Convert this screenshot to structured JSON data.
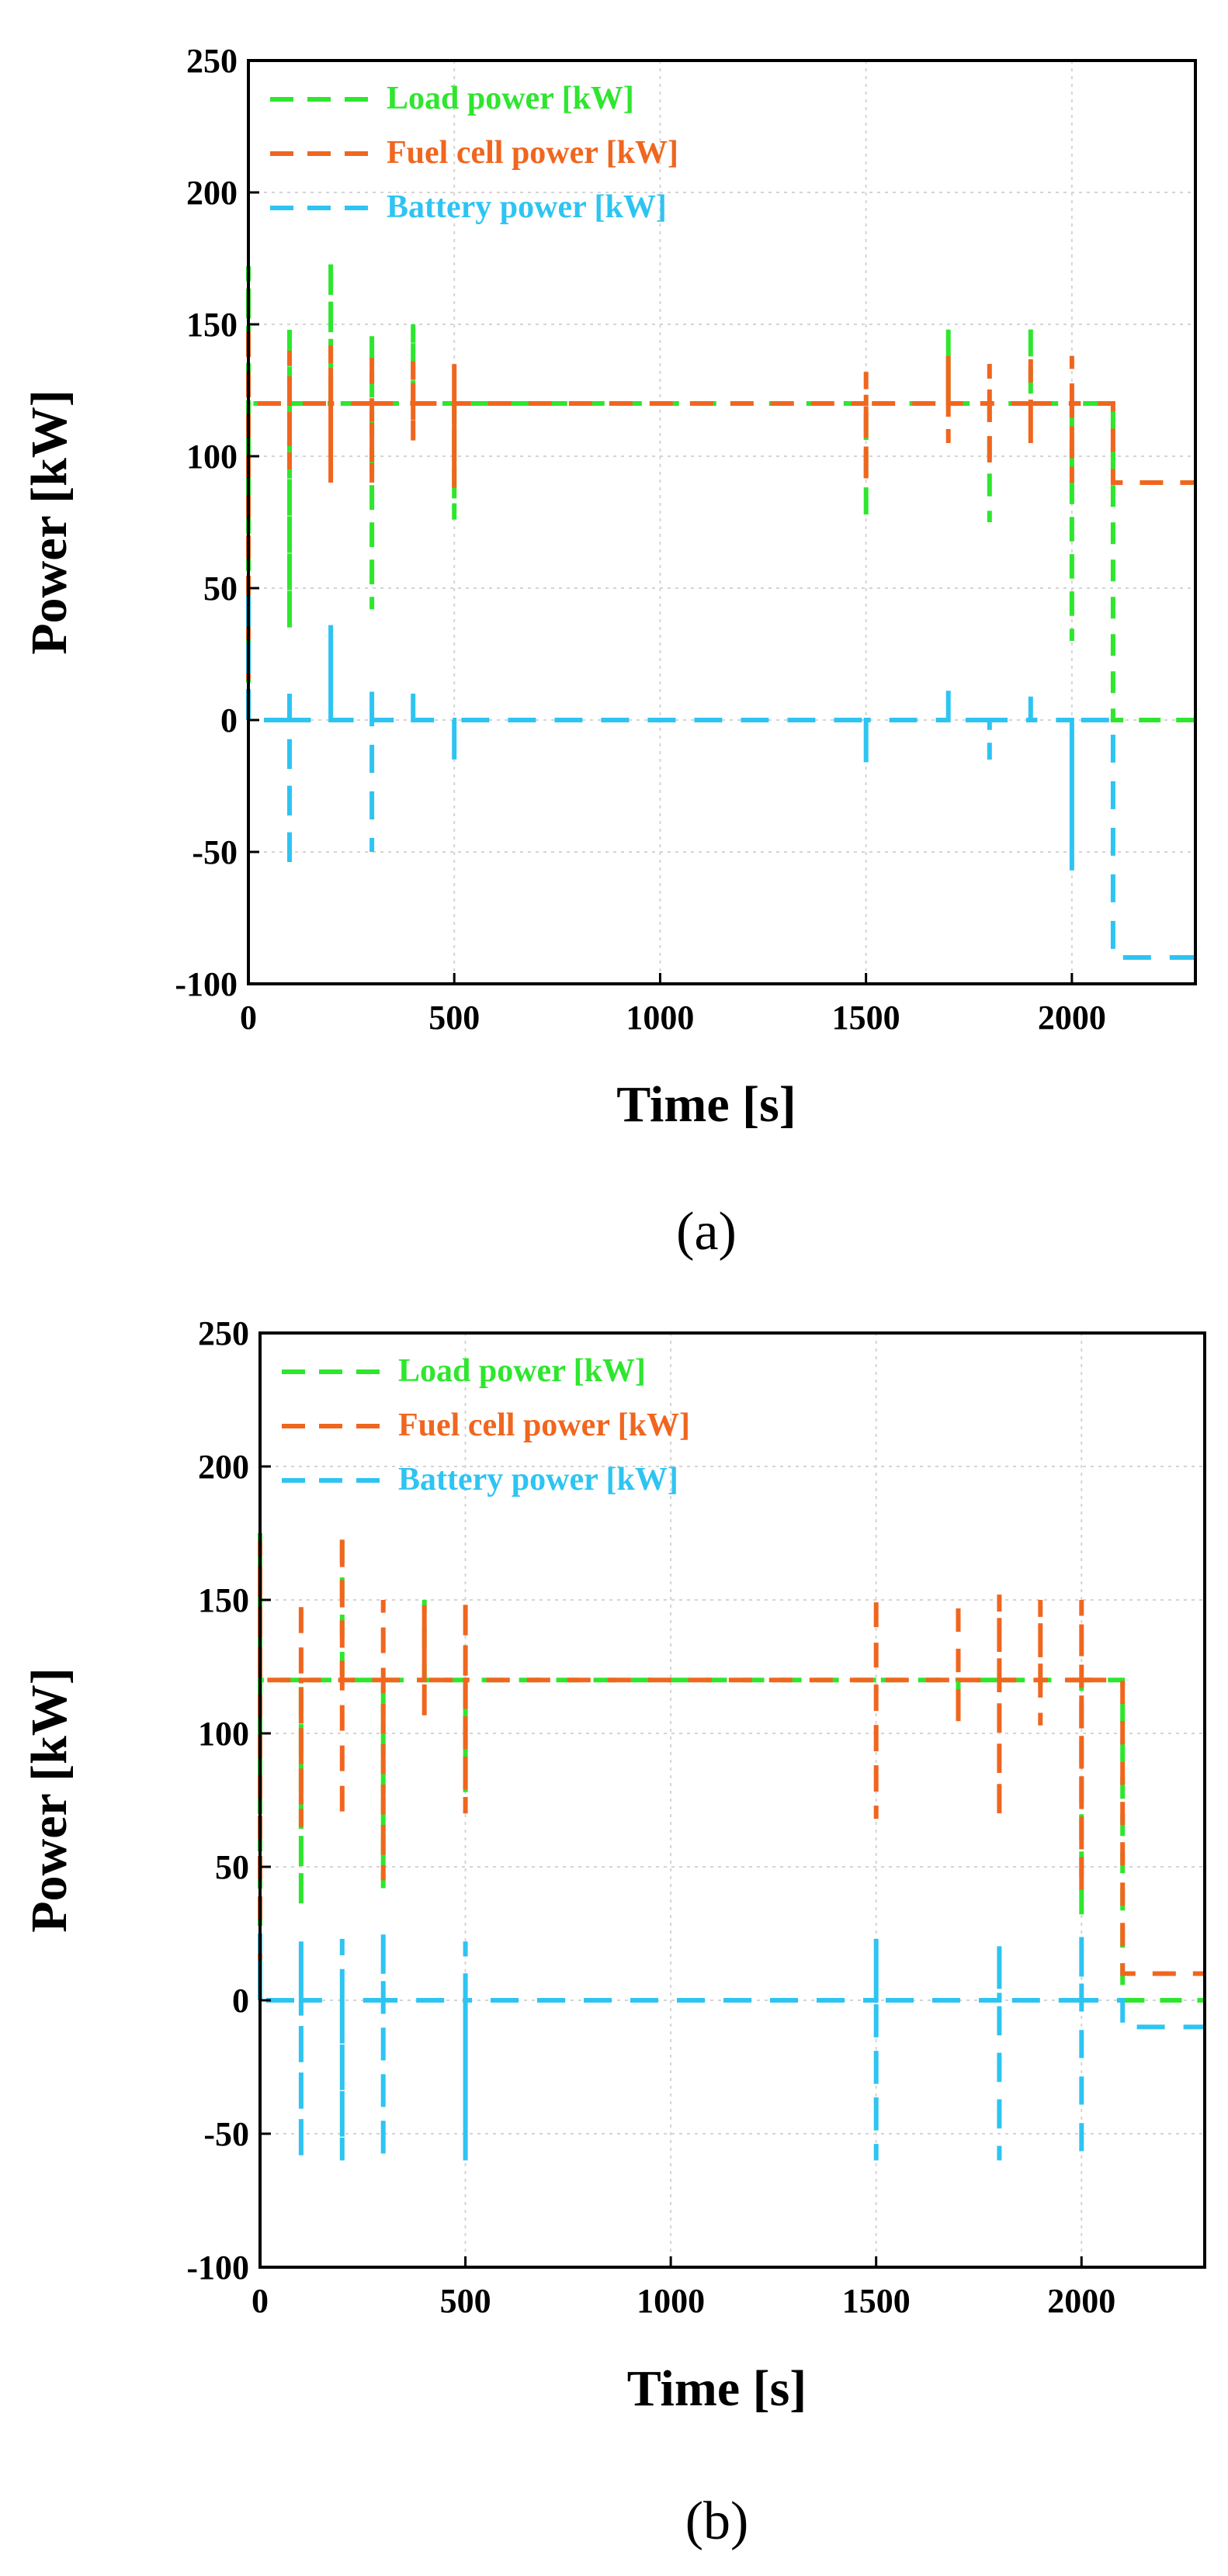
{
  "figure": {
    "colors": {
      "load": "#2ee62e",
      "fuel_cell": "#f0661f",
      "battery": "#2ec4f2",
      "axis": "#000000",
      "grid": "#d4d4d4"
    }
  },
  "chart_data": [
    {
      "type": "line",
      "panel_label": "(a)",
      "xlabel": "Time [s]",
      "ylabel": "Power [kW]",
      "xlim": [
        0,
        2300
      ],
      "ylim": [
        -100,
        250
      ],
      "xticks": [
        0,
        500,
        1000,
        1500,
        2000
      ],
      "yticks": [
        -100,
        -50,
        0,
        50,
        100,
        150,
        200,
        250
      ],
      "grid": true,
      "legend_position": "top-left",
      "series": [
        {
          "name": "Load power [kW]",
          "color": "#2ee62e",
          "x": [
            0,
            0,
            0,
            100,
            100,
            100,
            100,
            200,
            200,
            200,
            300,
            300,
            300,
            300,
            400,
            400,
            400,
            500,
            500,
            500,
            1500,
            1500,
            1500,
            1700,
            1700,
            1700,
            1800,
            1800,
            1800,
            1900,
            1900,
            1900,
            2000,
            2000,
            2000,
            2100,
            2100,
            2300
          ],
          "y": [
            0,
            172,
            120,
            120,
            35,
            148,
            120,
            120,
            174,
            120,
            120,
            148,
            42,
            120,
            120,
            150,
            120,
            120,
            76,
            120,
            120,
            76,
            120,
            120,
            148,
            120,
            120,
            75,
            120,
            120,
            150,
            120,
            120,
            30,
            120,
            120,
            0,
            0
          ]
        },
        {
          "name": "Fuel cell power [kW]",
          "color": "#f0661f",
          "x": [
            0,
            0,
            0,
            100,
            100,
            100,
            100,
            200,
            200,
            200,
            200,
            300,
            300,
            300,
            300,
            400,
            400,
            400,
            400,
            500,
            500,
            500,
            500,
            1500,
            1500,
            1500,
            1500,
            1700,
            1700,
            1700,
            1700,
            1800,
            1800,
            1800,
            1800,
            1900,
            1900,
            1900,
            1900,
            2000,
            2000,
            2000,
            2000,
            2100,
            2100,
            2300
          ],
          "y": [
            0,
            150,
            120,
            120,
            95,
            140,
            120,
            120,
            142,
            90,
            120,
            120,
            140,
            90,
            120,
            120,
            136,
            106,
            120,
            120,
            135,
            88,
            120,
            120,
            132,
            90,
            120,
            120,
            138,
            105,
            120,
            120,
            135,
            95,
            120,
            120,
            140,
            105,
            120,
            120,
            138,
            90,
            120,
            120,
            90,
            90
          ]
        },
        {
          "name": "Battery power [kW]",
          "color": "#2ec4f2",
          "x": [
            0,
            0,
            0,
            100,
            100,
            100,
            100,
            200,
            200,
            200,
            300,
            300,
            300,
            300,
            400,
            400,
            400,
            500,
            500,
            500,
            1500,
            1500,
            1500,
            1700,
            1700,
            1700,
            1800,
            1800,
            1800,
            1900,
            1900,
            1900,
            2000,
            2000,
            2000,
            2100,
            2100,
            2300
          ],
          "y": [
            0,
            50,
            0,
            0,
            -57,
            10,
            0,
            0,
            36,
            0,
            0,
            13,
            -50,
            0,
            0,
            10,
            0,
            0,
            -16,
            0,
            0,
            -16,
            0,
            0,
            12,
            0,
            0,
            -15,
            0,
            0,
            12,
            0,
            0,
            -57,
            0,
            0,
            -90,
            -90
          ]
        }
      ]
    },
    {
      "type": "line",
      "panel_label": "(b)",
      "xlabel": "Time [s]",
      "ylabel": "Power [kW]",
      "xlim": [
        0,
        2300
      ],
      "ylim": [
        -100,
        250
      ],
      "xticks": [
        0,
        500,
        1000,
        1500,
        2000
      ],
      "yticks": [
        -100,
        -50,
        0,
        50,
        100,
        150,
        200,
        250
      ],
      "grid": true,
      "legend_position": "top-left",
      "series": [
        {
          "name": "Load power [kW]",
          "color": "#2ee62e",
          "x": [
            0,
            0,
            0,
            100,
            100,
            100,
            200,
            200,
            200,
            300,
            300,
            300,
            400,
            400,
            400,
            500,
            500,
            500,
            1500,
            1500,
            1500,
            1700,
            1700,
            1700,
            1800,
            1800,
            1800,
            1900,
            1900,
            1900,
            2000,
            2000,
            2000,
            2100,
            2100,
            2300
          ],
          "y": [
            0,
            175,
            120,
            120,
            35,
            120,
            120,
            175,
            120,
            120,
            42,
            120,
            120,
            150,
            120,
            120,
            78,
            120,
            120,
            122,
            120,
            120,
            110,
            120,
            120,
            118,
            120,
            120,
            118,
            120,
            120,
            30,
            120,
            120,
            0,
            0
          ]
        },
        {
          "name": "Fuel cell power [kW]",
          "color": "#f0661f",
          "x": [
            0,
            0,
            0,
            100,
            100,
            100,
            100,
            200,
            200,
            200,
            200,
            300,
            300,
            300,
            300,
            400,
            400,
            400,
            400,
            500,
            500,
            500,
            500,
            1500,
            1500,
            1500,
            1500,
            1700,
            1700,
            1700,
            1700,
            1800,
            1800,
            1800,
            1800,
            1900,
            1900,
            1900,
            1900,
            2000,
            2000,
            2000,
            2000,
            2100,
            2100,
            2300
          ],
          "y": [
            0,
            172,
            120,
            120,
            150,
            65,
            120,
            120,
            175,
            68,
            120,
            120,
            150,
            45,
            120,
            120,
            148,
            105,
            120,
            120,
            150,
            70,
            120,
            120,
            152,
            68,
            120,
            120,
            150,
            103,
            120,
            120,
            152,
            68,
            120,
            120,
            150,
            103,
            120,
            120,
            150,
            40,
            120,
            120,
            10,
            10
          ]
        },
        {
          "name": "Battery power [kW]",
          "color": "#2ec4f2",
          "x": [
            0,
            0,
            0,
            100,
            100,
            100,
            100,
            200,
            200,
            200,
            200,
            300,
            300,
            300,
            300,
            500,
            500,
            500,
            500,
            1500,
            1500,
            1500,
            1500,
            1800,
            1800,
            1800,
            1800,
            2000,
            2000,
            2000,
            2000,
            2100,
            2100,
            2300
          ],
          "y": [
            0,
            25,
            0,
            0,
            22,
            -60,
            0,
            0,
            23,
            -60,
            0,
            0,
            26,
            -60,
            0,
            0,
            22,
            -60,
            0,
            0,
            23,
            -60,
            0,
            0,
            21,
            -60,
            0,
            0,
            25,
            -60,
            0,
            0,
            -10,
            -10
          ]
        }
      ]
    }
  ]
}
